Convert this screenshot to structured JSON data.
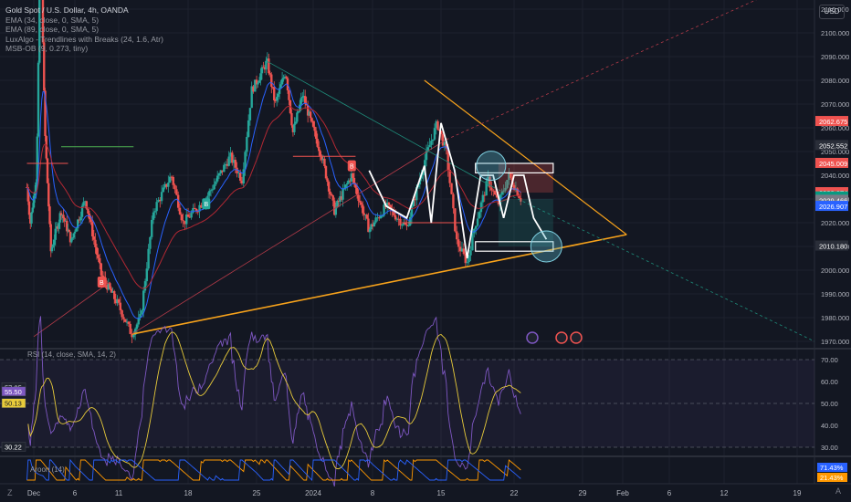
{
  "header": {
    "symbol_title": "Gold Spot / U.S. Dollar, 4h, OANDA",
    "indicators": [
      "EMA (34, close, 0, SMA, 5)",
      "EMA (89, close, 0, SMA, 5)",
      "LuxAlgo - Trendlines with Breaks (24, 1.6, Atr)",
      "MSB-OB (9, 0.273, tiny)"
    ],
    "currency": "USD"
  },
  "rsi_pane": {
    "legend": "RSI (14, close, SMA, 14, 2)"
  },
  "aroon_pane": {
    "legend": "Aroon (14)"
  },
  "footer": {
    "logo_icon": "tradingview-logo-icon",
    "goto_label": "A"
  },
  "colors": {
    "background": "#131722",
    "up": "#26a69a",
    "down": "#ef5350",
    "ema34": "#2962ff",
    "ema89": "#b22833",
    "trendline_orange": "#f7a21b",
    "pattern": "#ffffff",
    "rsi": "#7e57c2",
    "rsi_ma": "#e8cb3a"
  },
  "chart_data": [
    {
      "type": "candlestick",
      "title": "Gold Spot / U.S. Dollar, 4h, OANDA",
      "x_ticks": [
        "Dec",
        "6",
        "11",
        "18",
        "25",
        "2024",
        "8",
        "15",
        "22",
        "29",
        "Feb",
        "6",
        "12",
        "19"
      ],
      "y_ticks": [
        1970,
        1980,
        1990,
        2000,
        2010,
        2020,
        2030,
        2040,
        2050,
        2060,
        2070,
        2080,
        2090,
        2100,
        2110
      ],
      "ylim": [
        1962,
        2128
      ],
      "grid": true,
      "legend_position": "top-left",
      "price_labels": [
        {
          "value": "2062.675",
          "color": "#ef5350"
        },
        {
          "value": "2052.552",
          "color": "#2a2e39"
        },
        {
          "value": "2045.009",
          "color": "#ef5350"
        },
        {
          "value": "2032.674",
          "color": "#ef5350"
        },
        {
          "value": "2030.900",
          "color": "#089981",
          "countdown": "02:15:40"
        },
        {
          "value": "2029.466",
          "color": "#787b86"
        },
        {
          "value": "2026.907",
          "color": "#2962ff"
        },
        {
          "value": "2010.180",
          "color": "#2a2e39"
        }
      ],
      "swing_points": [
        {
          "label": "Dec 4 high",
          "value": 2145
        },
        {
          "label": "Dec 13 low",
          "value": 1973
        },
        {
          "label": "Dec 28 high",
          "value": 2088
        },
        {
          "label": "Jan 5 low",
          "value": 2017
        },
        {
          "label": "Jan 15 high",
          "value": 2062
        },
        {
          "label": "Jan 17 low",
          "value": 2003
        },
        {
          "label": "Jan 23",
          "value": 2030
        }
      ],
      "markers": [
        "B",
        "B",
        "B"
      ]
    },
    {
      "type": "line",
      "title": "RSI (14, close, SMA, 14, 2)",
      "y_ticks": [
        30.0,
        40.0,
        50.0,
        60.0,
        70.0
      ],
      "ylim": [
        27,
        73
      ],
      "levels": [
        70,
        50,
        30
      ],
      "current_labels": [
        "57.35",
        "55.50",
        "50.13",
        "30.22"
      ]
    },
    {
      "type": "line",
      "title": "Aroon (14)",
      "series": [
        {
          "name": "Up"
        },
        {
          "name": "Down"
        }
      ],
      "ylim": [
        0,
        100
      ],
      "current_labels": [
        "71.43%",
        "21.43%"
      ]
    }
  ]
}
